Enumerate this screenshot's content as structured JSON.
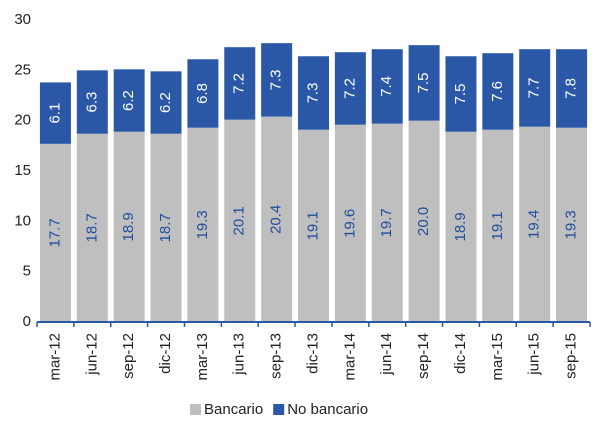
{
  "chart_data": {
    "type": "stacked_bar",
    "categories": [
      "mar-12",
      "jun-12",
      "sep-12",
      "dic-12",
      "mar-13",
      "jun-13",
      "sep-13",
      "dic-13",
      "mar-14",
      "jun-14",
      "sep-14",
      "dic-14",
      "mar-15",
      "jun-15",
      "sep-15"
    ],
    "series": [
      {
        "name": "Bancario",
        "color": "#bfbfbf",
        "label_color": "#1f4e9c",
        "values": [
          17.7,
          18.7,
          18.9,
          18.7,
          19.3,
          20.1,
          20.4,
          19.1,
          19.6,
          19.7,
          20.0,
          18.9,
          19.1,
          19.4,
          19.3
        ],
        "value_labels": [
          "17.7",
          "18.7",
          "18.9",
          "18.7",
          "19.3",
          "20.1",
          "20.4",
          "19.1",
          "19.6",
          "19.7",
          "20.0",
          "18.9",
          "19.1",
          "19.4",
          "19.3"
        ]
      },
      {
        "name": "No bancario",
        "color": "#2b58a6",
        "label_color": "#ffffff",
        "values": [
          6.1,
          6.3,
          6.2,
          6.2,
          6.8,
          7.2,
          7.3,
          7.3,
          7.2,
          7.4,
          7.5,
          7.5,
          7.6,
          7.7,
          7.8
        ],
        "value_labels": [
          "6.1",
          "6.3",
          "6.2",
          "6.2",
          "6.8",
          "7.2",
          "7.3",
          "7.3",
          "7.2",
          "7.4",
          "7.5",
          "7.5",
          "7.6",
          "7.7",
          "7.8"
        ]
      }
    ],
    "ylim": [
      0,
      30
    ],
    "yticks": [
      0,
      5,
      10,
      15,
      20,
      25,
      30
    ],
    "legend": "bottom"
  }
}
